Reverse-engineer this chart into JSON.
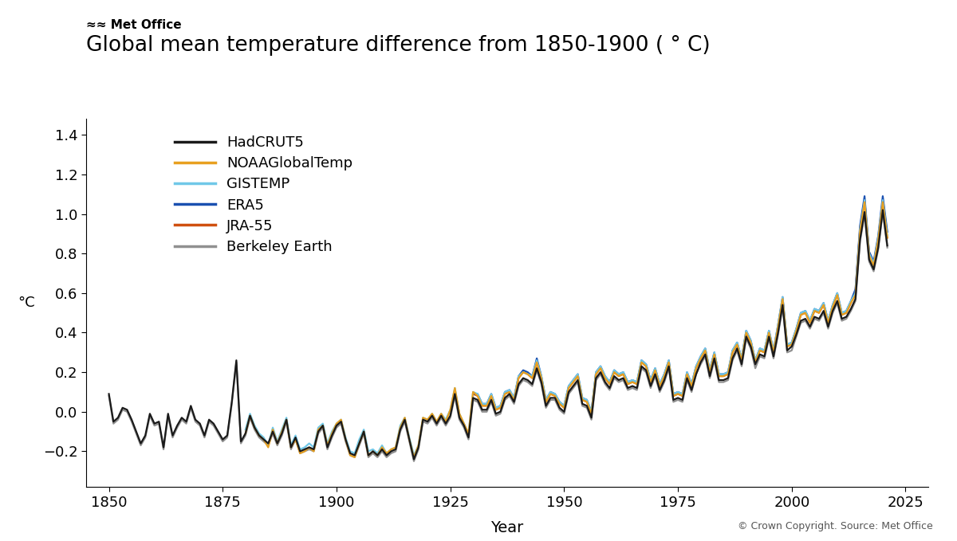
{
  "title": "Global mean temperature difference from 1850-1900 ( ° C)",
  "ylabel": "°C",
  "xlabel": "Year",
  "copyright": "© Crown Copyright. Source: Met Office",
  "ylim": [
    -0.38,
    1.48
  ],
  "xlim": [
    1845,
    2030
  ],
  "yticks": [
    -0.2,
    0.0,
    0.2,
    0.4,
    0.6,
    0.8,
    1.0,
    1.2,
    1.4
  ],
  "xticks": [
    1850,
    1875,
    1900,
    1925,
    1950,
    1975,
    2000,
    2025
  ],
  "series_order": [
    "HadCRUT5",
    "NOAAGlobalTemp",
    "GISTEMP",
    "ERA5",
    "JRA-55",
    "Berkeley Earth"
  ],
  "series": {
    "HadCRUT5": {
      "color": "#1a1a1a",
      "lw": 1.6,
      "zorder": 6
    },
    "NOAAGlobalTemp": {
      "color": "#e8a020",
      "lw": 1.6,
      "zorder": 5
    },
    "GISTEMP": {
      "color": "#70c8e8",
      "lw": 1.6,
      "zorder": 4
    },
    "ERA5": {
      "color": "#1a50b0",
      "lw": 1.6,
      "zorder": 3
    },
    "JRA-55": {
      "color": "#d05010",
      "lw": 1.6,
      "zorder": 2
    },
    "Berkeley Earth": {
      "color": "#909090",
      "lw": 1.6,
      "zorder": 1
    }
  },
  "years": [
    1850,
    1851,
    1852,
    1853,
    1854,
    1855,
    1856,
    1857,
    1858,
    1859,
    1860,
    1861,
    1862,
    1863,
    1864,
    1865,
    1866,
    1867,
    1868,
    1869,
    1870,
    1871,
    1872,
    1873,
    1874,
    1875,
    1876,
    1877,
    1878,
    1879,
    1880,
    1881,
    1882,
    1883,
    1884,
    1885,
    1886,
    1887,
    1888,
    1889,
    1890,
    1891,
    1892,
    1893,
    1894,
    1895,
    1896,
    1897,
    1898,
    1899,
    1900,
    1901,
    1902,
    1903,
    1904,
    1905,
    1906,
    1907,
    1908,
    1909,
    1910,
    1911,
    1912,
    1913,
    1914,
    1915,
    1916,
    1917,
    1918,
    1919,
    1920,
    1921,
    1922,
    1923,
    1924,
    1925,
    1926,
    1927,
    1928,
    1929,
    1930,
    1931,
    1932,
    1933,
    1934,
    1935,
    1936,
    1937,
    1938,
    1939,
    1940,
    1941,
    1942,
    1943,
    1944,
    1945,
    1946,
    1947,
    1948,
    1949,
    1950,
    1951,
    1952,
    1953,
    1954,
    1955,
    1956,
    1957,
    1958,
    1959,
    1960,
    1961,
    1962,
    1963,
    1964,
    1965,
    1966,
    1967,
    1968,
    1969,
    1970,
    1971,
    1972,
    1973,
    1974,
    1975,
    1976,
    1977,
    1978,
    1979,
    1980,
    1981,
    1982,
    1983,
    1984,
    1985,
    1986,
    1987,
    1988,
    1989,
    1990,
    1991,
    1992,
    1993,
    1994,
    1995,
    1996,
    1997,
    1998,
    1999,
    2000,
    2001,
    2002,
    2003,
    2004,
    2005,
    2006,
    2007,
    2008,
    2009,
    2010,
    2011,
    2012,
    2013,
    2014,
    2015,
    2016,
    2017,
    2018,
    2019,
    2020,
    2021
  ],
  "vals_hadcrut5": [
    0.09,
    -0.05,
    -0.03,
    0.02,
    0.01,
    -0.04,
    -0.1,
    -0.16,
    -0.12,
    -0.01,
    -0.06,
    -0.05,
    -0.18,
    -0.01,
    -0.12,
    -0.07,
    -0.03,
    -0.05,
    0.03,
    -0.04,
    -0.06,
    -0.12,
    -0.04,
    -0.06,
    -0.1,
    -0.14,
    -0.12,
    0.05,
    0.26,
    -0.15,
    -0.11,
    -0.02,
    -0.08,
    -0.12,
    -0.14,
    -0.16,
    -0.1,
    -0.16,
    -0.11,
    -0.04,
    -0.18,
    -0.13,
    -0.2,
    -0.19,
    -0.18,
    -0.19,
    -0.1,
    -0.07,
    -0.18,
    -0.12,
    -0.07,
    -0.05,
    -0.14,
    -0.21,
    -0.22,
    -0.16,
    -0.1,
    -0.22,
    -0.2,
    -0.22,
    -0.19,
    -0.22,
    -0.2,
    -0.19,
    -0.09,
    -0.04,
    -0.14,
    -0.24,
    -0.18,
    -0.04,
    -0.05,
    -0.02,
    -0.06,
    -0.02,
    -0.06,
    -0.02,
    0.09,
    -0.03,
    -0.07,
    -0.13,
    0.07,
    0.06,
    0.01,
    0.01,
    0.06,
    -0.01,
    0.0,
    0.07,
    0.09,
    0.05,
    0.14,
    0.17,
    0.16,
    0.14,
    0.22,
    0.15,
    0.03,
    0.07,
    0.07,
    0.02,
    0.0,
    0.1,
    0.13,
    0.16,
    0.04,
    0.03,
    -0.03,
    0.17,
    0.2,
    0.15,
    0.12,
    0.18,
    0.16,
    0.17,
    0.12,
    0.13,
    0.12,
    0.23,
    0.21,
    0.13,
    0.19,
    0.11,
    0.16,
    0.23,
    0.06,
    0.07,
    0.06,
    0.17,
    0.11,
    0.19,
    0.25,
    0.29,
    0.18,
    0.27,
    0.16,
    0.16,
    0.17,
    0.27,
    0.32,
    0.24,
    0.38,
    0.33,
    0.24,
    0.29,
    0.28,
    0.38,
    0.28,
    0.4,
    0.54,
    0.31,
    0.33,
    0.39,
    0.46,
    0.47,
    0.43,
    0.48,
    0.47,
    0.51,
    0.43,
    0.51,
    0.56,
    0.47,
    0.48,
    0.52,
    0.57,
    0.87,
    1.01,
    0.77,
    0.72,
    0.83,
    1.02,
    0.84
  ],
  "vals_noaa": [
    null,
    null,
    null,
    null,
    null,
    null,
    null,
    null,
    null,
    null,
    null,
    null,
    null,
    null,
    null,
    null,
    null,
    null,
    null,
    null,
    null,
    null,
    null,
    null,
    null,
    null,
    null,
    null,
    null,
    null,
    -0.11,
    -0.02,
    -0.08,
    -0.12,
    -0.14,
    -0.18,
    -0.09,
    -0.16,
    -0.1,
    -0.04,
    -0.18,
    -0.14,
    -0.21,
    -0.2,
    -0.18,
    -0.2,
    -0.09,
    -0.07,
    -0.17,
    -0.11,
    -0.06,
    -0.04,
    -0.14,
    -0.22,
    -0.23,
    -0.16,
    -0.1,
    -0.22,
    -0.2,
    -0.22,
    -0.18,
    -0.21,
    -0.19,
    -0.18,
    -0.08,
    -0.03,
    -0.14,
    -0.23,
    -0.17,
    -0.03,
    -0.04,
    -0.01,
    -0.05,
    -0.01,
    -0.05,
    0.01,
    0.12,
    -0.01,
    -0.06,
    -0.11,
    0.1,
    0.08,
    0.03,
    0.03,
    0.08,
    0.01,
    0.02,
    0.09,
    0.1,
    0.06,
    0.17,
    0.2,
    0.19,
    0.17,
    0.25,
    0.17,
    0.05,
    0.09,
    0.08,
    0.04,
    0.02,
    0.12,
    0.15,
    0.18,
    0.06,
    0.05,
    -0.01,
    0.19,
    0.22,
    0.17,
    0.14,
    0.2,
    0.18,
    0.19,
    0.14,
    0.15,
    0.14,
    0.25,
    0.23,
    0.15,
    0.21,
    0.13,
    0.18,
    0.25,
    0.08,
    0.09,
    0.08,
    0.19,
    0.13,
    0.22,
    0.27,
    0.31,
    0.2,
    0.29,
    0.18,
    0.18,
    0.19,
    0.3,
    0.34,
    0.26,
    0.4,
    0.35,
    0.25,
    0.31,
    0.3,
    0.4,
    0.3,
    0.43,
    0.57,
    0.33,
    0.34,
    0.41,
    0.49,
    0.5,
    0.45,
    0.51,
    0.5,
    0.54,
    0.45,
    0.53,
    0.59,
    0.49,
    0.5,
    0.55,
    0.59,
    0.91,
    1.06,
    0.79,
    0.74,
    0.87,
    1.06,
    0.88
  ],
  "vals_gistemp": [
    null,
    null,
    null,
    null,
    null,
    null,
    null,
    null,
    null,
    null,
    null,
    null,
    null,
    null,
    null,
    null,
    null,
    null,
    null,
    null,
    null,
    null,
    null,
    null,
    null,
    null,
    null,
    null,
    null,
    null,
    -0.09,
    -0.01,
    -0.07,
    -0.11,
    -0.13,
    -0.17,
    -0.08,
    -0.15,
    -0.09,
    -0.03,
    -0.17,
    -0.12,
    -0.19,
    -0.18,
    -0.16,
    -0.18,
    -0.08,
    -0.06,
    -0.16,
    -0.1,
    -0.06,
    -0.04,
    -0.13,
    -0.2,
    -0.21,
    -0.14,
    -0.09,
    -0.2,
    -0.19,
    -0.21,
    -0.17,
    -0.21,
    -0.19,
    -0.18,
    -0.07,
    -0.03,
    -0.13,
    -0.22,
    -0.17,
    -0.03,
    -0.04,
    -0.01,
    -0.05,
    -0.01,
    -0.04,
    0.01,
    0.12,
    -0.01,
    -0.06,
    -0.11,
    0.1,
    0.09,
    0.04,
    0.04,
    0.09,
    0.02,
    0.03,
    0.1,
    0.11,
    0.07,
    0.18,
    0.2,
    0.19,
    0.18,
    0.26,
    0.18,
    0.06,
    0.1,
    0.09,
    0.05,
    0.03,
    0.13,
    0.16,
    0.19,
    0.07,
    0.06,
    0.0,
    0.2,
    0.23,
    0.18,
    0.15,
    0.21,
    0.19,
    0.2,
    0.15,
    0.16,
    0.15,
    0.26,
    0.24,
    0.16,
    0.22,
    0.14,
    0.19,
    0.26,
    0.09,
    0.1,
    0.09,
    0.2,
    0.14,
    0.23,
    0.28,
    0.32,
    0.21,
    0.3,
    0.19,
    0.19,
    0.2,
    0.31,
    0.35,
    0.27,
    0.41,
    0.36,
    0.26,
    0.32,
    0.31,
    0.41,
    0.31,
    0.44,
    0.58,
    0.34,
    0.35,
    0.42,
    0.5,
    0.51,
    0.46,
    0.52,
    0.51,
    0.55,
    0.46,
    0.54,
    0.6,
    0.5,
    0.51,
    0.56,
    0.6,
    0.92,
    1.07,
    0.8,
    0.75,
    0.88,
    1.07,
    0.89
  ],
  "vals_era5": [
    null,
    null,
    null,
    null,
    null,
    null,
    null,
    null,
    null,
    null,
    null,
    null,
    null,
    null,
    null,
    null,
    null,
    null,
    null,
    null,
    null,
    null,
    null,
    null,
    null,
    null,
    null,
    null,
    null,
    null,
    null,
    null,
    null,
    null,
    null,
    null,
    null,
    null,
    null,
    null,
    null,
    null,
    null,
    null,
    null,
    null,
    null,
    null,
    null,
    null,
    null,
    null,
    null,
    null,
    null,
    null,
    null,
    null,
    null,
    null,
    null,
    null,
    null,
    null,
    null,
    null,
    null,
    null,
    null,
    null,
    null,
    null,
    null,
    null,
    null,
    null,
    null,
    null,
    null,
    null,
    0.09,
    0.09,
    0.04,
    0.04,
    0.09,
    0.02,
    0.03,
    0.1,
    0.11,
    0.07,
    0.18,
    0.21,
    0.2,
    0.18,
    0.27,
    0.18,
    0.06,
    0.1,
    0.09,
    0.05,
    0.03,
    0.13,
    0.16,
    0.19,
    0.07,
    0.06,
    0.0,
    0.2,
    0.23,
    0.18,
    0.15,
    0.21,
    0.19,
    0.2,
    0.15,
    0.16,
    0.15,
    0.26,
    0.24,
    0.16,
    0.22,
    0.14,
    0.19,
    0.26,
    0.09,
    0.1,
    0.09,
    0.2,
    0.14,
    0.23,
    0.28,
    0.32,
    0.21,
    0.3,
    0.19,
    0.19,
    0.2,
    0.31,
    0.35,
    0.27,
    0.41,
    0.36,
    0.26,
    0.32,
    0.31,
    0.41,
    0.31,
    0.44,
    0.58,
    0.34,
    0.35,
    0.42,
    0.5,
    0.51,
    0.46,
    0.52,
    0.51,
    0.55,
    0.46,
    0.54,
    0.6,
    0.5,
    0.51,
    0.56,
    0.62,
    0.94,
    1.09,
    0.81,
    0.76,
    0.89,
    1.09,
    0.91
  ],
  "vals_jra55": [
    null,
    null,
    null,
    null,
    null,
    null,
    null,
    null,
    null,
    null,
    null,
    null,
    null,
    null,
    null,
    null,
    null,
    null,
    null,
    null,
    null,
    null,
    null,
    null,
    null,
    null,
    null,
    null,
    null,
    null,
    null,
    null,
    null,
    null,
    null,
    null,
    null,
    null,
    null,
    null,
    null,
    null,
    null,
    null,
    null,
    null,
    null,
    null,
    null,
    null,
    null,
    null,
    null,
    null,
    null,
    null,
    null,
    null,
    null,
    null,
    null,
    null,
    null,
    null,
    null,
    null,
    null,
    null,
    null,
    null,
    null,
    null,
    null,
    null,
    null,
    null,
    null,
    null,
    null,
    null,
    0.09,
    0.08,
    0.03,
    0.03,
    0.08,
    0.01,
    0.02,
    0.09,
    0.1,
    0.06,
    0.17,
    0.2,
    0.19,
    0.17,
    0.25,
    0.17,
    0.05,
    0.09,
    0.08,
    0.04,
    0.02,
    0.12,
    0.15,
    0.18,
    0.06,
    0.05,
    -0.01,
    0.19,
    0.22,
    0.17,
    0.14,
    0.2,
    0.18,
    0.19,
    0.14,
    0.15,
    0.14,
    0.25,
    0.23,
    0.15,
    0.21,
    0.13,
    0.18,
    0.25,
    0.08,
    0.09,
    0.08,
    0.19,
    0.13,
    0.22,
    0.27,
    0.31,
    0.2,
    0.29,
    0.18,
    0.18,
    0.19,
    0.3,
    0.34,
    0.26,
    0.4,
    0.35,
    0.25,
    0.31,
    0.3,
    0.4,
    0.3,
    0.43,
    0.57,
    0.33,
    0.34,
    0.41,
    0.49,
    0.5,
    0.45,
    0.51,
    0.5,
    0.54,
    0.45,
    0.53,
    0.59,
    0.49,
    0.5,
    0.55,
    0.61,
    0.92,
    1.07,
    0.8,
    0.75,
    0.87,
    1.07,
    0.88
  ],
  "vals_berkeley": [
    0.08,
    -0.06,
    -0.04,
    0.01,
    0.0,
    -0.05,
    -0.11,
    -0.17,
    -0.13,
    -0.02,
    -0.07,
    -0.06,
    -0.19,
    -0.02,
    -0.13,
    -0.08,
    -0.04,
    -0.06,
    0.02,
    -0.05,
    -0.07,
    -0.13,
    -0.05,
    -0.07,
    -0.11,
    -0.15,
    -0.13,
    0.04,
    0.25,
    -0.16,
    -0.12,
    -0.03,
    -0.09,
    -0.13,
    -0.15,
    -0.17,
    -0.11,
    -0.17,
    -0.12,
    -0.05,
    -0.19,
    -0.14,
    -0.21,
    -0.2,
    -0.19,
    -0.2,
    -0.11,
    -0.08,
    -0.19,
    -0.13,
    -0.08,
    -0.06,
    -0.15,
    -0.22,
    -0.23,
    -0.17,
    -0.11,
    -0.23,
    -0.21,
    -0.23,
    -0.2,
    -0.23,
    -0.21,
    -0.2,
    -0.1,
    -0.05,
    -0.15,
    -0.25,
    -0.19,
    -0.05,
    -0.06,
    -0.03,
    -0.07,
    -0.03,
    -0.07,
    -0.03,
    0.08,
    -0.04,
    -0.08,
    -0.14,
    0.06,
    0.05,
    0.0,
    0.0,
    0.05,
    -0.02,
    -0.01,
    0.06,
    0.08,
    0.04,
    0.13,
    0.16,
    0.15,
    0.13,
    0.21,
    0.14,
    0.02,
    0.06,
    0.06,
    0.01,
    -0.01,
    0.09,
    0.12,
    0.15,
    0.03,
    0.02,
    -0.04,
    0.16,
    0.19,
    0.14,
    0.11,
    0.17,
    0.15,
    0.16,
    0.11,
    0.12,
    0.11,
    0.22,
    0.2,
    0.12,
    0.18,
    0.1,
    0.15,
    0.22,
    0.05,
    0.06,
    0.05,
    0.16,
    0.1,
    0.19,
    0.24,
    0.28,
    0.17,
    0.26,
    0.15,
    0.15,
    0.16,
    0.26,
    0.31,
    0.23,
    0.37,
    0.32,
    0.22,
    0.28,
    0.27,
    0.37,
    0.27,
    0.39,
    0.53,
    0.3,
    0.31,
    0.38,
    0.45,
    0.46,
    0.42,
    0.47,
    0.46,
    0.5,
    0.42,
    0.5,
    0.55,
    0.46,
    0.47,
    0.51,
    0.56,
    0.86,
    1.0,
    0.76,
    0.71,
    0.82,
    1.01,
    0.83
  ]
}
